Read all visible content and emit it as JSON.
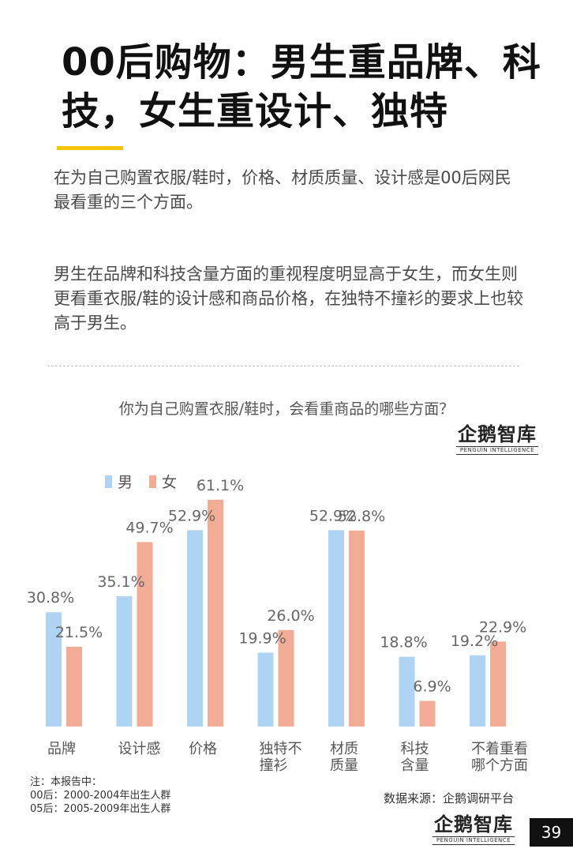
{
  "title": "00后购物：男生重品牌、科技，女生重设计、独特",
  "paragraph1": "在为自己购置衣服/鞋时，价格、材质质量、设计感是00后网民最看重的三个方面。",
  "paragraph2": "男生在品牌和科技含量方面的重视程度明显高于女生，而女生则更看重衣服/鞋的设计感和商品价格，在独特不撞衫的要求上也较高于男生。",
  "logo": {
    "text": "企鹅智库",
    "sub": "PENGUIN INTELLIGENCE"
  },
  "notes": [
    "注：本报告中：",
    "00后：2000-2004年出生人群",
    "05后：2005-2009年出生人群"
  ],
  "source": "数据来源：企鹅调研平台",
  "page_number": "39",
  "colors": {
    "male": "#aed3f3",
    "female": "#f2ab94",
    "accent": "#f5c400"
  },
  "chart_data": {
    "type": "bar",
    "title": "你为自己购置衣服/鞋时，会看重商品的哪些方面？",
    "categories": [
      [
        "品牌"
      ],
      [
        "设计感"
      ],
      [
        "价格"
      ],
      [
        "独特不",
        "撞衫"
      ],
      [
        "材质",
        "质量"
      ],
      [
        "科技",
        "含量"
      ],
      [
        "不着重看",
        "哪个方面"
      ]
    ],
    "series": [
      {
        "name": "男",
        "values": [
          30.8,
          35.1,
          52.9,
          19.9,
          52.9,
          18.8,
          19.2
        ]
      },
      {
        "name": "女",
        "values": [
          21.5,
          49.7,
          61.1,
          26.0,
          52.8,
          6.9,
          22.9
        ]
      }
    ],
    "value_suffix": "%",
    "legend": "top-left",
    "grid": false
  }
}
